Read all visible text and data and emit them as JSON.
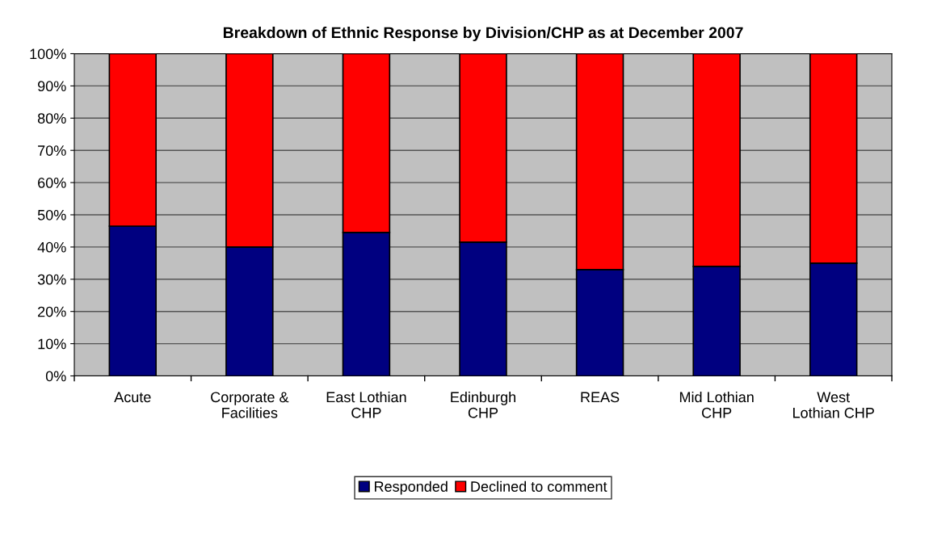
{
  "chart_data": {
    "type": "bar",
    "title": "Breakdown of Ethnic Response by Division/CHP as at December 2007",
    "categories": [
      "Acute",
      "Corporate &\nFacilities",
      "East Lothian\nCHP",
      "Edinburgh\nCHP",
      "REAS",
      "Mid Lothian\nCHP",
      "West\nLothian CHP"
    ],
    "stacked": true,
    "series": [
      {
        "name": "Responded",
        "color": "#000080",
        "values": [
          46.5,
          40,
          44.5,
          41.5,
          33,
          34,
          35
        ]
      },
      {
        "name": "Declined to comment",
        "color": "#ff0000",
        "values": [
          53.5,
          60,
          55.5,
          58.5,
          67,
          66,
          65
        ]
      }
    ],
    "ylim": [
      0,
      100
    ],
    "yticks": [
      {
        "value": 0,
        "label": "0%"
      },
      {
        "value": 10,
        "label": "10%"
      },
      {
        "value": 20,
        "label": "20%"
      },
      {
        "value": 30,
        "label": "30%"
      },
      {
        "value": 40,
        "label": "40%"
      },
      {
        "value": 50,
        "label": "50%"
      },
      {
        "value": 60,
        "label": "60%"
      },
      {
        "value": 70,
        "label": "70%"
      },
      {
        "value": 80,
        "label": "80%"
      },
      {
        "value": 90,
        "label": "90%"
      },
      {
        "value": 100,
        "label": "100%"
      }
    ],
    "grid": "y",
    "legend": "bottom"
  }
}
